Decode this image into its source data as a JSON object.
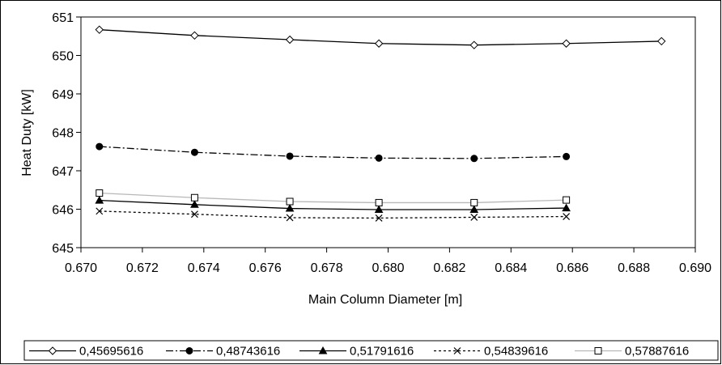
{
  "chart_data": {
    "type": "line",
    "title": "",
    "xlabel": "Main Column Diameter [m]",
    "ylabel": "Heat Duty [kW]",
    "xlim": [
      0.67,
      0.69
    ],
    "ylim": [
      645,
      651
    ],
    "xticks": [
      "0.670",
      "0.672",
      "0.674",
      "0.676",
      "0.678",
      "0.680",
      "0.682",
      "0.684",
      "0.686",
      "0.688",
      "0.690"
    ],
    "yticks": [
      "645",
      "646",
      "647",
      "648",
      "649",
      "650",
      "651"
    ],
    "grid": false,
    "legend_position": "bottom",
    "series": [
      {
        "name": "0,45695616",
        "marker": "diamond-open",
        "line": "solid",
        "color": "#000000",
        "x": [
          0.6706,
          0.6737,
          0.6768,
          0.6797,
          0.6828,
          0.6858,
          0.6889
        ],
        "y": [
          650.67,
          650.52,
          650.41,
          650.31,
          650.27,
          650.31,
          650.37
        ]
      },
      {
        "name": "0,48743616",
        "marker": "circle-filled",
        "line": "dashdot",
        "color": "#000000",
        "x": [
          0.6706,
          0.6737,
          0.6768,
          0.6797,
          0.6828,
          0.6858
        ],
        "y": [
          647.63,
          647.48,
          647.38,
          647.33,
          647.32,
          647.37
        ]
      },
      {
        "name": "0,51791616",
        "marker": "triangle-filled",
        "line": "solid",
        "color": "#000000",
        "x": [
          0.6706,
          0.6737,
          0.6768,
          0.6797,
          0.6828,
          0.6858
        ],
        "y": [
          646.23,
          646.12,
          646.02,
          645.99,
          645.99,
          646.03
        ]
      },
      {
        "name": "0,54839616",
        "marker": "x",
        "line": "dotted",
        "color": "#000000",
        "x": [
          0.6706,
          0.6737,
          0.6768,
          0.6797,
          0.6828,
          0.6858
        ],
        "y": [
          645.95,
          645.87,
          645.78,
          645.77,
          645.79,
          645.81
        ]
      },
      {
        "name": "0,57887616",
        "marker": "square-open",
        "line": "solid",
        "color": "#b8b8b8",
        "x": [
          0.6706,
          0.6737,
          0.6768,
          0.6797,
          0.6828,
          0.6858
        ],
        "y": [
          646.42,
          646.3,
          646.2,
          646.17,
          646.17,
          646.24
        ]
      }
    ]
  }
}
